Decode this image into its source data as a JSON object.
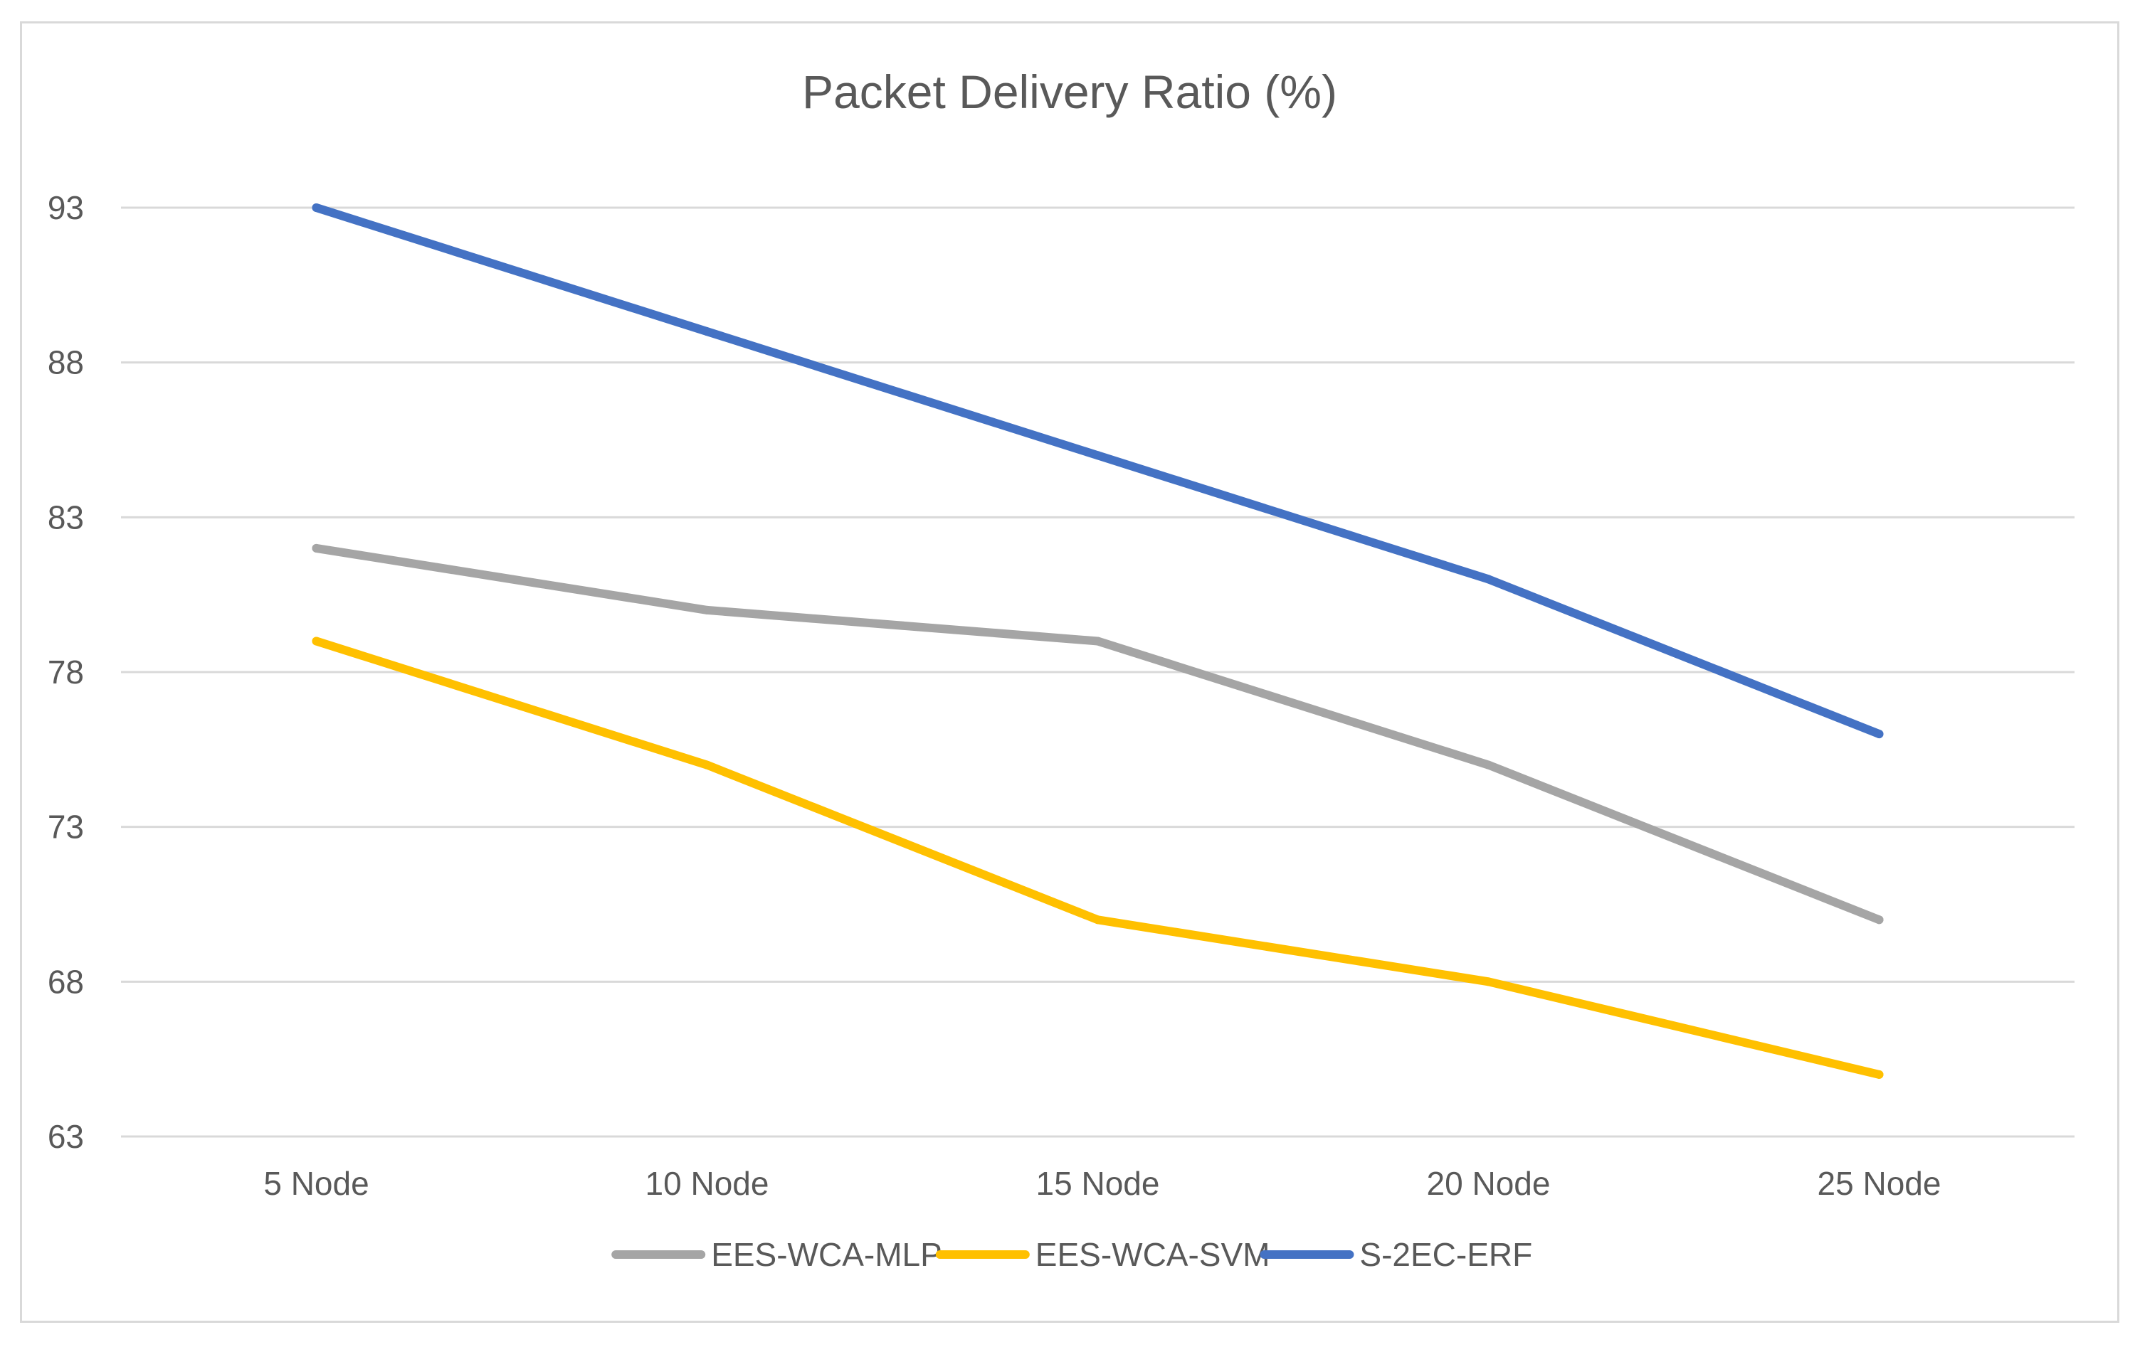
{
  "chart_data": {
    "type": "line",
    "title": "Packet Delivery Ratio (%)",
    "xlabel": "",
    "ylabel": "",
    "categories": [
      "5  Node",
      "10  Node",
      "15  Node",
      "20  Node",
      "25  Node"
    ],
    "ylim": [
      63,
      93
    ],
    "yticks": [
      93,
      88,
      83,
      78,
      73,
      68,
      63
    ],
    "grid": true,
    "legend_position": "bottom",
    "series": [
      {
        "name": "EES-WCA-MLP",
        "color": "#a5a5a5",
        "values": [
          82,
          80,
          79,
          75,
          70
        ]
      },
      {
        "name": "EES-WCA-SVM",
        "color": "#ffc000",
        "values": [
          79,
          75,
          70,
          68,
          65
        ]
      },
      {
        "name": "S-2EC-ERF",
        "color": "#4472c4",
        "values": [
          93,
          89,
          85,
          81,
          76
        ]
      }
    ]
  }
}
